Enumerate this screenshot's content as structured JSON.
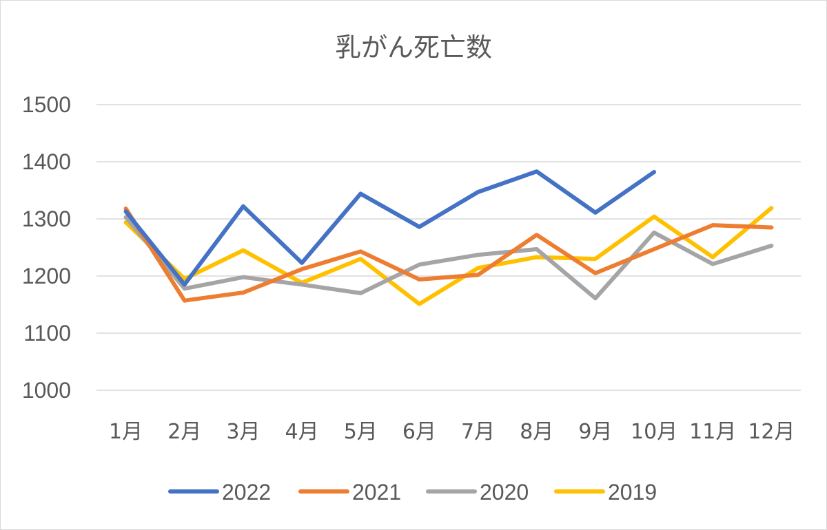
{
  "chart_data": {
    "type": "line",
    "title": "乳がん死亡数",
    "xlabel": "",
    "ylabel": "",
    "categories": [
      "1月",
      "2月",
      "3月",
      "4月",
      "5月",
      "6月",
      "7月",
      "8月",
      "9月",
      "10月",
      "11月",
      "12月"
    ],
    "ylim": [
      1000,
      1500
    ],
    "yticks": [
      "1000",
      "1100",
      "1200",
      "1300",
      "1400",
      "1500"
    ],
    "grid": true,
    "legend_position": "bottom",
    "series": [
      {
        "name": "2022",
        "color": "#4472C4",
        "values": [
          1313,
          1185,
          1322,
          1223,
          1344,
          1286,
          1347,
          1383,
          1311,
          1382,
          null,
          null
        ]
      },
      {
        "name": "2021",
        "color": "#ED7D31",
        "values": [
          1318,
          1157,
          1171,
          1212,
          1243,
          1194,
          1202,
          1272,
          1205,
          1247,
          1289,
          1285
        ]
      },
      {
        "name": "2020",
        "color": "#A5A5A5",
        "values": [
          1303,
          1178,
          1198,
          1185,
          1170,
          1220,
          1237,
          1247,
          1161,
          1276,
          1221,
          1253
        ]
      },
      {
        "name": "2019",
        "color": "#FFC000",
        "values": [
          1294,
          1195,
          1245,
          1188,
          1230,
          1151,
          1214,
          1233,
          1230,
          1304,
          1233,
          1319
        ]
      }
    ]
  }
}
